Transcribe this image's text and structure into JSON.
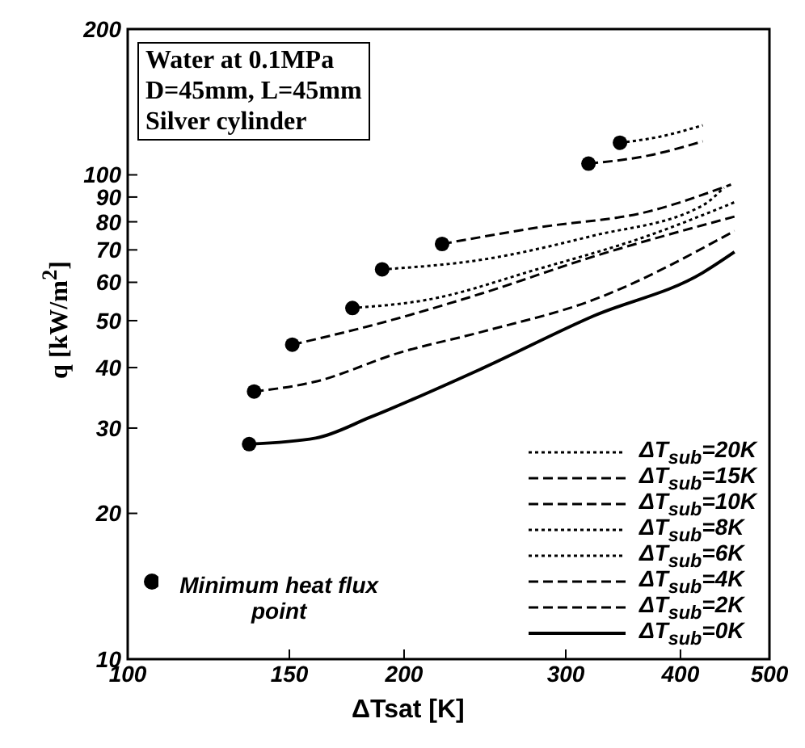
{
  "chart_data": {
    "type": "line",
    "xlabel": "ΔTsat [K]",
    "ylabel": "q [kW/m$^{2}$]",
    "log": "xy",
    "xlim": [
      100,
      500
    ],
    "ylim": [
      10,
      200
    ],
    "xticks": [
      100,
      150,
      200,
      300,
      400,
      500
    ],
    "yticks": [
      10,
      20,
      30,
      40,
      50,
      60,
      70,
      80,
      90,
      100,
      200
    ],
    "grid": false,
    "legend": "bottom right",
    "marker": "none",
    "annotations": [
      "Water at 0.1MPa",
      "D=45mm, L=45mm",
      "Silver cylinder"
    ],
    "series": [
      {
        "name": "ΔT$_{sub}$=20K",
        "color": "#000000",
        "line_style": "dotted",
        "x": [
          343.7,
          379,
          423
        ],
        "values": [
          116.5,
          119.8,
          126.6
        ]
      },
      {
        "name": "ΔT$_{sub}$=15K",
        "color": "#000000",
        "line_style": "dashed",
        "x": [
          317.6,
          369,
          423
        ],
        "values": [
          105.5,
          109.6,
          117.3
        ]
      },
      {
        "name": "ΔT$_{sub}$=10K",
        "color": "#000000",
        "line_style": "dashed",
        "x": [
          220,
          279,
          369,
          454
        ],
        "values": [
          72,
          77.8,
          84,
          95.5
        ]
      },
      {
        "name": "ΔT$_{sub}$=8K",
        "color": "#000000",
        "line_style": "dotted",
        "x": [
          189.3,
          243,
          321.5,
          423,
          446
        ],
        "values": [
          63.8,
          66.8,
          74.9,
          86.5,
          94.1
        ]
      },
      {
        "name": "ΔT$_{sub}$=6K",
        "color": "#000000",
        "line_style": "dotted",
        "x": [
          175.7,
          211.8,
          279,
          369,
          458
        ],
        "values": [
          53.1,
          55.2,
          63.8,
          74.9,
          87.8
        ]
      },
      {
        "name": "ΔT$_{sub}$=4K",
        "color": "#000000",
        "line_style": "dashed",
        "x": [
          151.1,
          183.8,
          243,
          321.5,
          458
        ],
        "values": [
          44.6,
          48.8,
          56.9,
          67.8,
          82
        ]
      },
      {
        "name": "ΔT$_{sub}$=2K",
        "color": "#000000",
        "line_style": "dashed",
        "x": [
          137.3,
          160,
          197.4,
          243,
          321.5,
          458
        ],
        "values": [
          35.7,
          37.4,
          42.9,
          47.4,
          55.2,
          76.6
        ]
      },
      {
        "name": "ΔT$_{sub}$=0K",
        "color": "#000000",
        "line_style": "solid",
        "x": [
          135.6,
          160.2,
          183.8,
          243,
          321.5,
          423,
          458
        ],
        "values": [
          27.8,
          28.6,
          31.6,
          39.8,
          51.1,
          62.8,
          69.3
        ]
      },
      {
        "name": "Minimum heat flux point",
        "type": "scatter",
        "marker": "circle",
        "color": "#000000",
        "x": [
          343.7,
          317.6,
          220,
          189.3,
          175.7,
          151.1,
          137.3,
          135.6
        ],
        "values": [
          116.5,
          105.5,
          72,
          63.8,
          53.1,
          44.6,
          35.7,
          27.8
        ]
      }
    ]
  }
}
